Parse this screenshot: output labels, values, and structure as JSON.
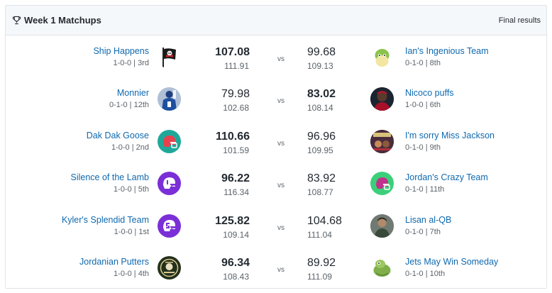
{
  "header": {
    "title": "Week 1 Matchups",
    "status": "Final results"
  },
  "vs_label": "vs",
  "matchups": [
    {
      "left": {
        "name": "Ship Happens",
        "record": "1-0-0 | 3rd",
        "score": "107.08",
        "projected": "111.91",
        "winner": true,
        "logo": "pirate-flag-icon"
      },
      "right": {
        "name": "Ian's Ingenious Team",
        "record": "0-1-0 | 8th",
        "score": "99.68",
        "projected": "109.13",
        "winner": false,
        "logo": "cartoon-character-icon"
      }
    },
    {
      "left": {
        "name": "Monnier",
        "record": "0-1-0 | 12th",
        "score": "79.98",
        "projected": "102.68",
        "winner": false,
        "logo": "player-photo-icon"
      },
      "right": {
        "name": "Nicoco puffs",
        "record": "1-0-0 | 6th",
        "score": "83.02",
        "projected": "108.14",
        "winner": true,
        "logo": "player-photo-icon"
      }
    },
    {
      "left": {
        "name": "Dak Dak Goose",
        "record": "1-0-0 | 2nd",
        "score": "110.66",
        "projected": "101.59",
        "winner": true,
        "logo": "helmet-icon"
      },
      "right": {
        "name": "I'm sorry Miss Jackson",
        "record": "0-1-0 | 9th",
        "score": "96.96",
        "projected": "109.95",
        "winner": false,
        "logo": "album-art-icon"
      }
    },
    {
      "left": {
        "name": "Silence of the Lamb",
        "record": "1-0-0 | 5th",
        "score": "96.22",
        "projected": "116.34",
        "winner": true,
        "logo": "helmet-icon"
      },
      "right": {
        "name": "Jordan's Crazy Team",
        "record": "0-1-0 | 11th",
        "score": "83.92",
        "projected": "108.77",
        "winner": false,
        "logo": "helmet-icon"
      }
    },
    {
      "left": {
        "name": "Kyler's Splendid Team",
        "record": "1-0-0 | 1st",
        "score": "125.82",
        "projected": "109.14",
        "winner": true,
        "logo": "helmet-icon"
      },
      "right": {
        "name": "Lisan al-QB",
        "record": "0-1-0 | 7th",
        "score": "104.68",
        "projected": "111.04",
        "winner": false,
        "logo": "character-photo-icon"
      }
    },
    {
      "left": {
        "name": "Jordanian Putters",
        "record": "1-0-0 | 4th",
        "score": "96.34",
        "projected": "108.43",
        "winner": true,
        "logo": "club-badge-icon"
      },
      "right": {
        "name": "Jets May Win Someday",
        "record": "0-1-0 | 10th",
        "score": "89.92",
        "projected": "111.09",
        "winner": false,
        "logo": "cartoon-turtle-icon"
      }
    }
  ]
}
